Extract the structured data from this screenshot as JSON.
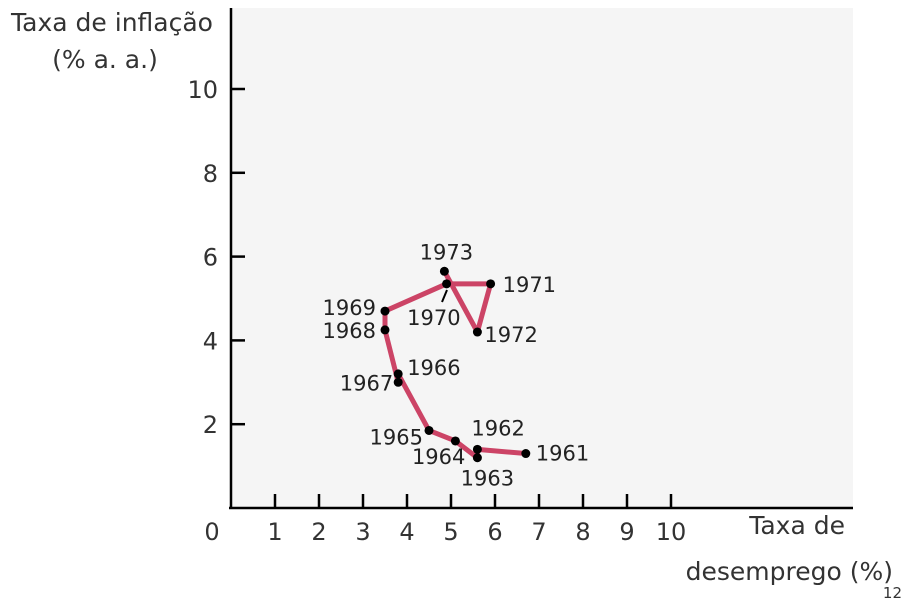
{
  "chart_data": {
    "type": "line",
    "title": "",
    "ylabel": [
      "Taxa de inflação",
      "(% a. a.)"
    ],
    "xlabel": [
      "Taxa de",
      "desemprego (%)"
    ],
    "origin_label": "0",
    "xlim": [
      0,
      10
    ],
    "ylim": [
      0,
      11
    ],
    "x_ticks": [
      1,
      2,
      3,
      4,
      5,
      6,
      7,
      8,
      9,
      10
    ],
    "y_ticks": [
      2,
      4,
      6,
      8,
      10
    ],
    "grid": false,
    "line_color": "#cc4466",
    "marker_color": "#000000",
    "background_panel": "#f5f5f5",
    "series": [
      {
        "points": [
          {
            "year": "1961",
            "x": 6.7,
            "y": 1.3
          },
          {
            "year": "1962",
            "x": 5.6,
            "y": 1.4
          },
          {
            "year": "1963",
            "x": 5.6,
            "y": 1.2
          },
          {
            "year": "1964",
            "x": 5.1,
            "y": 1.6
          },
          {
            "year": "1965",
            "x": 4.5,
            "y": 1.85
          },
          {
            "year": "1966",
            "x": 3.8,
            "y": 3.2
          },
          {
            "year": "1967",
            "x": 3.8,
            "y": 3.0
          },
          {
            "year": "1968",
            "x": 3.5,
            "y": 4.25
          },
          {
            "year": "1969",
            "x": 3.5,
            "y": 4.7
          },
          {
            "year": "1970",
            "x": 4.9,
            "y": 5.35
          },
          {
            "year": "1971",
            "x": 5.9,
            "y": 5.35
          },
          {
            "year": "1972",
            "x": 5.6,
            "y": 4.2
          },
          {
            "year": "1973",
            "x": 4.85,
            "y": 5.65
          }
        ]
      }
    ]
  },
  "page_number": "12"
}
